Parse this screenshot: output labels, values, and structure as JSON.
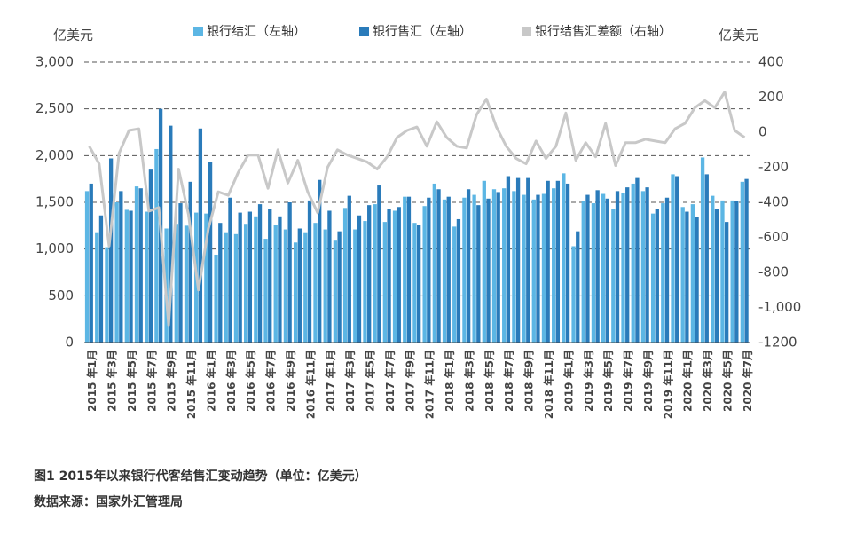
{
  "chart_data": {
    "type": "bar-line",
    "left_axis_label": "亿美元",
    "right_axis_label": "亿美元",
    "caption": "图1 2015年以来银行代客结售汇变动趋势（单位：亿美元）",
    "source": "数据来源：国家外汇管理局",
    "categories": [
      "2015 年1月",
      null,
      "2015 年3月",
      null,
      "2015 年5月",
      null,
      "2015 年7月",
      null,
      "2015 年9月",
      null,
      "2015 年11月",
      null,
      "2016 年1月",
      null,
      "2016 年3月",
      null,
      "2016 年5月",
      null,
      "2016 年7月",
      null,
      "2016 年9月",
      null,
      "2016 年11月",
      null,
      "2017 年1月",
      null,
      "2017 年3月",
      null,
      "2017 年5月",
      null,
      "2017 年7月",
      null,
      "2017 年9月",
      null,
      "2017 年11月",
      null,
      "2018 年1月",
      null,
      "2018 年3月",
      null,
      "2018 年5月",
      null,
      "2018 年7月",
      null,
      "2018 年9月",
      null,
      "2018 年11月",
      null,
      "2019 年1月",
      null,
      "2019 年3月",
      null,
      "2019 年5月",
      null,
      "2019 年7月",
      null,
      "2019 年9月",
      null,
      "2019 年11月",
      null,
      "2020 年1月",
      null,
      "2020 年3月",
      null,
      "2020 年5月",
      null,
      "2020 年7月"
    ],
    "series": [
      {
        "name": "银行结汇（左轴）",
        "color": "#5cb6e4",
        "axis": "y",
        "values": [
          1620,
          1180,
          1020,
          1500,
          1420,
          1670,
          1400,
          2070,
          1220,
          1270,
          1250,
          1390,
          1380,
          940,
          1180,
          1160,
          1270,
          1350,
          1110,
          1260,
          1210,
          1070,
          1180,
          1280,
          1210,
          1090,
          1440,
          1210,
          1300,
          1480,
          1290,
          1410,
          1560,
          1280,
          1460,
          1700,
          1530,
          1240,
          1550,
          1580,
          1730,
          1640,
          1650,
          1620,
          1580,
          1530,
          1590,
          1650,
          1810,
          1030,
          1510,
          1490,
          1590,
          1430,
          1600,
          1700,
          1620,
          1380,
          1490,
          1800,
          1450,
          1480,
          1980,
          1570,
          1520,
          1520,
          1720
        ]
      },
      {
        "name": "银行售汇（左轴）",
        "color": "#2a7bba",
        "axis": "y",
        "values": [
          1700,
          1360,
          1970,
          1620,
          1410,
          1650,
          1850,
          2500,
          2320,
          1490,
          1720,
          2290,
          1930,
          1280,
          1550,
          1390,
          1400,
          1480,
          1430,
          1350,
          1500,
          1220,
          1520,
          1740,
          1410,
          1190,
          1570,
          1360,
          1470,
          1680,
          1430,
          1450,
          1560,
          1260,
          1550,
          1640,
          1560,
          1320,
          1640,
          1470,
          1540,
          1610,
          1780,
          1760,
          1760,
          1580,
          1730,
          1730,
          1700,
          1190,
          1580,
          1630,
          1540,
          1620,
          1660,
          1760,
          1660,
          1430,
          1550,
          1780,
          1400,
          1340,
          1800,
          1430,
          1290,
          1510,
          1750
        ]
      },
      {
        "name": "银行结售汇差额（右轴）",
        "color": "#c8c8c8",
        "axis": "y2",
        "values": [
          -80,
          -180,
          -650,
          -120,
          10,
          20,
          -450,
          -430,
          -1100,
          -210,
          -470,
          -900,
          -550,
          -340,
          -360,
          -230,
          -130,
          -130,
          -320,
          -100,
          -290,
          -160,
          -340,
          -460,
          -200,
          -100,
          -130,
          -150,
          -170,
          -210,
          -140,
          -30,
          10,
          30,
          -80,
          60,
          -30,
          -80,
          -90,
          100,
          190,
          30,
          -80,
          -150,
          -180,
          -50,
          -150,
          -80,
          110,
          -160,
          -60,
          -140,
          50,
          -190,
          -60,
          -60,
          -40,
          -50,
          -60,
          20,
          50,
          140,
          180,
          140,
          230,
          10,
          -30
        ]
      }
    ],
    "ylim": [
      0,
      3000
    ],
    "yticks": [
      0,
      500,
      {
        "value": 1000,
        "label": "1,000"
      },
      {
        "value": 1500,
        "label": "1,500"
      },
      {
        "value": 2000,
        "label": "2,000"
      },
      {
        "value": 2500,
        "label": "2,500"
      },
      {
        "value": 3000,
        "label": "3,000"
      }
    ],
    "y2lim": [
      -1200,
      400
    ],
    "y2ticks": [
      -1200,
      {
        "value": -1000,
        "label": "-1,000"
      },
      -800,
      -600,
      -400,
      -200,
      0,
      200,
      400
    ],
    "grid": true
  }
}
